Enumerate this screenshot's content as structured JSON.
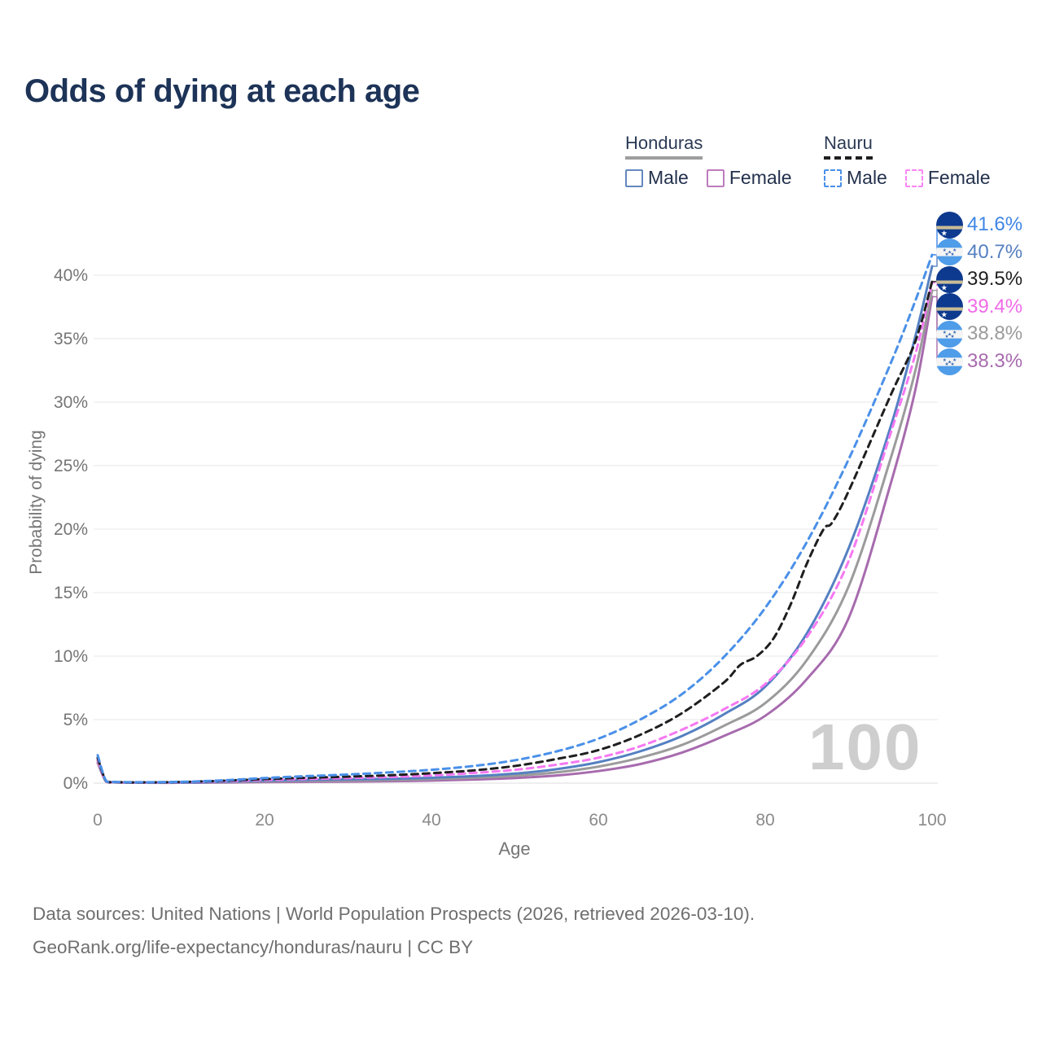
{
  "header": {
    "title": "Odds of dying at each age"
  },
  "legend": {
    "groups": [
      {
        "title": "Honduras",
        "line_style": "solid",
        "line_color": "#9e9e9e",
        "items": [
          {
            "label": "Male",
            "box_color": "#6488c0",
            "box_style": "solid"
          },
          {
            "label": "Female",
            "box_color": "#bd7cbe",
            "box_style": "solid"
          }
        ]
      },
      {
        "title": "Nauru",
        "line_style": "dashed",
        "line_color": "#1f1f1f",
        "items": [
          {
            "label": "Male",
            "box_color": "#4a90e8",
            "box_style": "dashed"
          },
          {
            "label": "Female",
            "box_color": "#fb86f5",
            "box_style": "dashed"
          }
        ]
      }
    ]
  },
  "chart_data": {
    "type": "line",
    "title": "Odds of dying at each age",
    "xlabel": "Age",
    "ylabel": "Probability of dying",
    "watermark": "100",
    "xlim": [
      0,
      100
    ],
    "ylim_percent": [
      0,
      42
    ],
    "grid": "horizontal",
    "grid_color": "#ececec",
    "xticks": [
      {
        "label": "0",
        "value": 0
      },
      {
        "label": "20",
        "value": 20
      },
      {
        "label": "40",
        "value": 40
      },
      {
        "label": "60",
        "value": 60
      },
      {
        "label": "80",
        "value": 80
      },
      {
        "label": "100",
        "value": 100
      }
    ],
    "yticks": [
      {
        "label": "0%",
        "value": 0
      },
      {
        "label": "5%",
        "value": 5
      },
      {
        "label": "10%",
        "value": 10
      },
      {
        "label": "15%",
        "value": 15
      },
      {
        "label": "20%",
        "value": 20
      },
      {
        "label": "25%",
        "value": 25
      },
      {
        "label": "30%",
        "value": 30
      },
      {
        "label": "35%",
        "value": 35
      },
      {
        "label": "40%",
        "value": 40
      }
    ],
    "series": [
      {
        "key": "honduras_female",
        "name": "Honduras Female",
        "country": "honduras",
        "sex": "female",
        "color": "#a76bae",
        "dashed": false,
        "points": [
          [
            0,
            1.6
          ],
          [
            1,
            0.12
          ],
          [
            2,
            0.06
          ],
          [
            3,
            0.04
          ],
          [
            5,
            0.03
          ],
          [
            10,
            0.03
          ],
          [
            15,
            0.05
          ],
          [
            20,
            0.08
          ],
          [
            25,
            0.1
          ],
          [
            30,
            0.12
          ],
          [
            35,
            0.15
          ],
          [
            40,
            0.2
          ],
          [
            45,
            0.28
          ],
          [
            50,
            0.4
          ],
          [
            55,
            0.6
          ],
          [
            60,
            0.95
          ],
          [
            65,
            1.5
          ],
          [
            70,
            2.4
          ],
          [
            75,
            3.7
          ],
          [
            80,
            5.3
          ],
          [
            85,
            8.2
          ],
          [
            90,
            13.0
          ],
          [
            95,
            23.5
          ],
          [
            98,
            31.0
          ],
          [
            100,
            38.3
          ]
        ]
      },
      {
        "key": "honduras_total",
        "name": "Honduras",
        "country": "honduras",
        "sex": "both",
        "color": "#9b9b9b",
        "dashed": false,
        "points": [
          [
            0,
            1.75
          ],
          [
            1,
            0.14
          ],
          [
            2,
            0.07
          ],
          [
            3,
            0.05
          ],
          [
            5,
            0.04
          ],
          [
            10,
            0.04
          ],
          [
            15,
            0.08
          ],
          [
            20,
            0.14
          ],
          [
            25,
            0.18
          ],
          [
            30,
            0.21
          ],
          [
            35,
            0.25
          ],
          [
            40,
            0.31
          ],
          [
            45,
            0.42
          ],
          [
            50,
            0.58
          ],
          [
            55,
            0.85
          ],
          [
            60,
            1.3
          ],
          [
            65,
            2.0
          ],
          [
            70,
            3.0
          ],
          [
            75,
            4.5
          ],
          [
            80,
            6.3
          ],
          [
            85,
            9.7
          ],
          [
            90,
            15.5
          ],
          [
            95,
            25.5
          ],
          [
            98,
            32.5
          ],
          [
            100,
            38.8
          ]
        ]
      },
      {
        "key": "honduras_male",
        "name": "Honduras Male",
        "country": "honduras",
        "sex": "male",
        "color": "#5580c2",
        "dashed": false,
        "points": [
          [
            0,
            1.9
          ],
          [
            1,
            0.16
          ],
          [
            2,
            0.08
          ],
          [
            3,
            0.06
          ],
          [
            5,
            0.05
          ],
          [
            10,
            0.05
          ],
          [
            15,
            0.11
          ],
          [
            20,
            0.2
          ],
          [
            25,
            0.26
          ],
          [
            30,
            0.3
          ],
          [
            35,
            0.34
          ],
          [
            40,
            0.42
          ],
          [
            45,
            0.55
          ],
          [
            50,
            0.75
          ],
          [
            55,
            1.1
          ],
          [
            60,
            1.65
          ],
          [
            65,
            2.5
          ],
          [
            70,
            3.7
          ],
          [
            75,
            5.4
          ],
          [
            80,
            7.6
          ],
          [
            85,
            11.8
          ],
          [
            90,
            18.5
          ],
          [
            95,
            28.0
          ],
          [
            98,
            35.2
          ],
          [
            100,
            40.7
          ]
        ]
      },
      {
        "key": "nauru_female",
        "name": "Nauru Female",
        "country": "nauru",
        "sex": "female",
        "color": "#f678f2",
        "dashed": true,
        "points": [
          [
            0,
            1.85
          ],
          [
            1,
            0.15
          ],
          [
            2,
            0.08
          ],
          [
            3,
            0.06
          ],
          [
            5,
            0.05
          ],
          [
            10,
            0.07
          ],
          [
            15,
            0.15
          ],
          [
            20,
            0.25
          ],
          [
            25,
            0.33
          ],
          [
            30,
            0.4
          ],
          [
            35,
            0.48
          ],
          [
            40,
            0.6
          ],
          [
            45,
            0.8
          ],
          [
            50,
            1.05
          ],
          [
            55,
            1.45
          ],
          [
            60,
            2.0
          ],
          [
            65,
            2.9
          ],
          [
            70,
            4.2
          ],
          [
            75,
            5.8
          ],
          [
            80,
            7.8
          ],
          [
            85,
            11.5
          ],
          [
            90,
            17.5
          ],
          [
            95,
            27.5
          ],
          [
            98,
            33.8
          ],
          [
            100,
            39.4
          ]
        ]
      },
      {
        "key": "nauru_total",
        "name": "Nauru",
        "country": "nauru",
        "sex": "both",
        "color": "#1f1f1f",
        "dashed": true,
        "points": [
          [
            0,
            2.0
          ],
          [
            1,
            0.17
          ],
          [
            2,
            0.09
          ],
          [
            3,
            0.07
          ],
          [
            5,
            0.06
          ],
          [
            10,
            0.09
          ],
          [
            15,
            0.19
          ],
          [
            20,
            0.32
          ],
          [
            25,
            0.42
          ],
          [
            30,
            0.51
          ],
          [
            35,
            0.62
          ],
          [
            40,
            0.78
          ],
          [
            45,
            1.0
          ],
          [
            50,
            1.35
          ],
          [
            55,
            1.9
          ],
          [
            60,
            2.6
          ],
          [
            65,
            3.8
          ],
          [
            70,
            5.5
          ],
          [
            75,
            7.9
          ],
          [
            77,
            9.3
          ],
          [
            79,
            10.0
          ],
          [
            81,
            11.4
          ],
          [
            83,
            14.0
          ],
          [
            85,
            17.3
          ],
          [
            87,
            20.0
          ],
          [
            88,
            20.5
          ],
          [
            90,
            23.0
          ],
          [
            95,
            30.5
          ],
          [
            98,
            34.8
          ],
          [
            100,
            39.5
          ]
        ]
      },
      {
        "key": "nauru_male",
        "name": "Nauru Male",
        "country": "nauru",
        "sex": "male",
        "color": "#4a90e8",
        "dashed": true,
        "points": [
          [
            0,
            2.2
          ],
          [
            1,
            0.18
          ],
          [
            2,
            0.1
          ],
          [
            3,
            0.08
          ],
          [
            5,
            0.07
          ],
          [
            10,
            0.1
          ],
          [
            15,
            0.22
          ],
          [
            20,
            0.4
          ],
          [
            25,
            0.55
          ],
          [
            30,
            0.68
          ],
          [
            35,
            0.85
          ],
          [
            40,
            1.05
          ],
          [
            45,
            1.35
          ],
          [
            50,
            1.8
          ],
          [
            55,
            2.5
          ],
          [
            60,
            3.5
          ],
          [
            65,
            5.0
          ],
          [
            70,
            7.0
          ],
          [
            75,
            9.9
          ],
          [
            80,
            13.8
          ],
          [
            85,
            19.0
          ],
          [
            90,
            25.5
          ],
          [
            95,
            33.0
          ],
          [
            98,
            38.0
          ],
          [
            100,
            41.6
          ]
        ]
      }
    ],
    "end_labels": [
      {
        "value": "41.6%",
        "series": "nauru_male",
        "country": "nauru",
        "color": "#3f86e6"
      },
      {
        "value": "40.7%",
        "series": "honduras_male",
        "country": "honduras",
        "color": "#5580c2"
      },
      {
        "value": "39.5%",
        "series": "nauru_total",
        "country": "nauru",
        "color": "#1f1f1f"
      },
      {
        "value": "39.4%",
        "series": "nauru_female",
        "country": "nauru",
        "color": "#f06ae8"
      },
      {
        "value": "38.8%",
        "series": "honduras_total",
        "country": "honduras",
        "color": "#9b9b9b"
      },
      {
        "value": "38.3%",
        "series": "honduras_female",
        "country": "honduras",
        "color": "#a76bae"
      }
    ]
  },
  "footer": {
    "line1": "Data sources: United Nations | World Population Prospects (2026, retrieved 2026-03-10).",
    "line2": "GeoRank.org/life-expectancy/honduras/nauru | CC BY"
  }
}
